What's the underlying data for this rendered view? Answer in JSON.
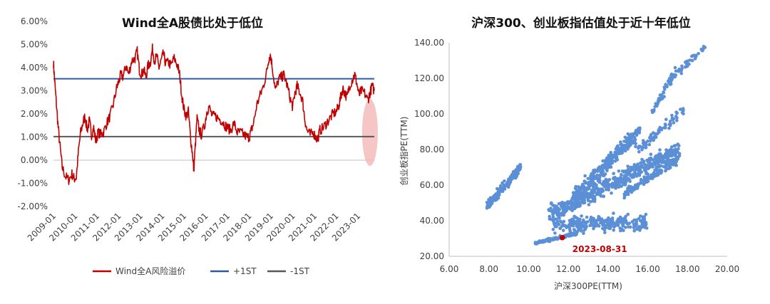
{
  "chart_data": [
    {
      "type": "line",
      "title": "Wind全A股债比处于低位",
      "xlabel": "",
      "ylabel": "",
      "ylim": [
        -0.02,
        0.06
      ],
      "yticks": [
        "-2.00%",
        "-1.00%",
        "0.00%",
        "1.00%",
        "2.00%",
        "3.00%",
        "4.00%",
        "5.00%",
        "6.00%"
      ],
      "categories": [
        "2009-01",
        "2010-01",
        "2011-01",
        "2012-01",
        "2013-01",
        "2014-01",
        "2015-01",
        "2016-01",
        "2017-01",
        "2018-01",
        "2019-01",
        "2020-01",
        "2021-01",
        "2022-01",
        "2023-01"
      ],
      "x_range": [
        2009.0,
        2023.75
      ],
      "series": [
        {
          "name": "Wind全A风险溢价",
          "color": "#C00000",
          "points": [
            [
              2009.0,
              4.2
            ],
            [
              2009.05,
              3.5
            ],
            [
              2009.12,
              2.6
            ],
            [
              2009.2,
              1.6
            ],
            [
              2009.3,
              0.6
            ],
            [
              2009.4,
              -0.3
            ],
            [
              2009.55,
              -0.7
            ],
            [
              2009.7,
              -0.85
            ],
            [
              2009.85,
              -0.6
            ],
            [
              2009.95,
              -0.8
            ],
            [
              2010.05,
              -0.75
            ],
            [
              2010.15,
              0.4
            ],
            [
              2010.25,
              1.2
            ],
            [
              2010.35,
              1.6
            ],
            [
              2010.45,
              1.9
            ],
            [
              2010.55,
              1.3
            ],
            [
              2010.65,
              1.7
            ],
            [
              2010.75,
              1.1
            ],
            [
              2010.85,
              1.4
            ],
            [
              2010.95,
              0.8
            ],
            [
              2011.05,
              1.2
            ],
            [
              2011.2,
              1.1
            ],
            [
              2011.3,
              1.2
            ],
            [
              2011.45,
              1.6
            ],
            [
              2011.6,
              1.9
            ],
            [
              2011.75,
              2.4
            ],
            [
              2011.9,
              3.1
            ],
            [
              2012.0,
              3.4
            ],
            [
              2012.1,
              3.7
            ],
            [
              2012.2,
              3.6
            ],
            [
              2012.35,
              4.1
            ],
            [
              2012.45,
              3.7
            ],
            [
              2012.6,
              4.3
            ],
            [
              2012.75,
              4.4
            ],
            [
              2012.85,
              4.7
            ],
            [
              2012.95,
              3.9
            ],
            [
              2013.05,
              3.7
            ],
            [
              2013.15,
              3.9
            ],
            [
              2013.25,
              3.6
            ],
            [
              2013.35,
              4.1
            ],
            [
              2013.45,
              4.2
            ],
            [
              2013.55,
              4.8
            ],
            [
              2013.65,
              4.3
            ],
            [
              2013.75,
              4.5
            ],
            [
              2013.85,
              4.0
            ],
            [
              2013.95,
              4.3
            ],
            [
              2014.05,
              4.6
            ],
            [
              2014.15,
              4.2
            ],
            [
              2014.3,
              4.2
            ],
            [
              2014.4,
              4.1
            ],
            [
              2014.55,
              4.4
            ],
            [
              2014.7,
              4.1
            ],
            [
              2014.8,
              3.7
            ],
            [
              2014.9,
              2.8
            ],
            [
              2015.0,
              2.2
            ],
            [
              2015.1,
              1.9
            ],
            [
              2015.2,
              2.1
            ],
            [
              2015.3,
              1.0
            ],
            [
              2015.4,
              0.2
            ],
            [
              2015.45,
              -0.45
            ],
            [
              2015.52,
              0.6
            ],
            [
              2015.6,
              1.8
            ],
            [
              2015.7,
              1.3
            ],
            [
              2015.8,
              1.1
            ],
            [
              2015.95,
              1.5
            ],
            [
              2016.05,
              2.1
            ],
            [
              2016.15,
              2.3
            ],
            [
              2016.3,
              1.9
            ],
            [
              2016.45,
              1.9
            ],
            [
              2016.6,
              1.8
            ],
            [
              2016.75,
              1.7
            ],
            [
              2016.9,
              1.5
            ],
            [
              2017.0,
              1.4
            ],
            [
              2017.15,
              1.3
            ],
            [
              2017.3,
              1.6
            ],
            [
              2017.45,
              1.2
            ],
            [
              2017.6,
              1.2
            ],
            [
              2017.75,
              1.1
            ],
            [
              2017.9,
              1.0
            ],
            [
              2018.0,
              1.0
            ],
            [
              2018.1,
              1.3
            ],
            [
              2018.2,
              1.6
            ],
            [
              2018.35,
              2.4
            ],
            [
              2018.5,
              2.8
            ],
            [
              2018.65,
              3.2
            ],
            [
              2018.8,
              3.8
            ],
            [
              2018.9,
              4.4
            ],
            [
              2018.98,
              4.55
            ],
            [
              2019.08,
              3.9
            ],
            [
              2019.2,
              3.0
            ],
            [
              2019.35,
              3.5
            ],
            [
              2019.5,
              3.6
            ],
            [
              2019.6,
              3.7
            ],
            [
              2019.75,
              3.2
            ],
            [
              2019.9,
              2.6
            ],
            [
              2020.0,
              2.3
            ],
            [
              2020.1,
              2.9
            ],
            [
              2020.2,
              3.2
            ],
            [
              2020.3,
              3.0
            ],
            [
              2020.45,
              2.6
            ],
            [
              2020.55,
              1.8
            ],
            [
              2020.65,
              1.3
            ],
            [
              2020.8,
              1.1
            ],
            [
              2020.95,
              1.2
            ],
            [
              2021.05,
              1.0
            ],
            [
              2021.15,
              0.9
            ],
            [
              2021.25,
              1.3
            ],
            [
              2021.4,
              1.4
            ],
            [
              2021.55,
              1.6
            ],
            [
              2021.7,
              1.8
            ],
            [
              2021.85,
              2.0
            ],
            [
              2022.0,
              2.1
            ],
            [
              2022.1,
              2.3
            ],
            [
              2022.2,
              2.7
            ],
            [
              2022.3,
              3.1
            ],
            [
              2022.4,
              2.9
            ],
            [
              2022.5,
              2.7
            ],
            [
              2022.6,
              3.2
            ],
            [
              2022.75,
              3.5
            ],
            [
              2022.85,
              3.7
            ],
            [
              2022.95,
              3.3
            ],
            [
              2023.05,
              2.8
            ],
            [
              2023.15,
              3.0
            ],
            [
              2023.3,
              2.9
            ],
            [
              2023.45,
              2.6
            ],
            [
              2023.55,
              2.9
            ],
            [
              2023.65,
              3.2
            ],
            [
              2023.75,
              3.0
            ]
          ]
        },
        {
          "name": "+1ST",
          "color": "#2E5C9A",
          "constant": 3.52
        },
        {
          "name": "-1ST",
          "color": "#595959",
          "constant": 1.02
        }
      ],
      "legend_position": "bottom",
      "highlight_color": "#F4B6B6"
    },
    {
      "type": "scatter",
      "title": "沪深300、创业板指估值处于近十年低位",
      "xlabel": "沪深300PE(TTM)",
      "ylabel": "创业板指PE(TTM)",
      "xlim": [
        6,
        20
      ],
      "ylim": [
        20,
        140
      ],
      "xticks": [
        "6.00",
        "8.00",
        "10.00",
        "12.00",
        "14.00",
        "16.00",
        "18.00",
        "20.00"
      ],
      "yticks": [
        "20.00",
        "40.00",
        "60.00",
        "80.00",
        "100.00",
        "120.00",
        "140.00"
      ],
      "point_color": "#5B8FD6",
      "highlight_color": "#C00000",
      "clusters": [
        {
          "x": [
            7.9,
            9.6
          ],
          "y": [
            48,
            70
          ],
          "trend": "up",
          "n": 160
        },
        {
          "x": [
            11.0,
            17.6
          ],
          "y": [
            43,
            80
          ],
          "trend": "up",
          "n": 500
        },
        {
          "x": [
            12.2,
            15.6
          ],
          "y": [
            52,
            90
          ],
          "trend": "up",
          "n": 300
        },
        {
          "x": [
            14.8,
            17.6
          ],
          "y": [
            55,
            75
          ],
          "trend": "up",
          "n": 140
        },
        {
          "x": [
            10.2,
            12.5
          ],
          "y": [
            27,
            33
          ],
          "trend": "up",
          "n": 110
        },
        {
          "x": [
            11.2,
            16.0
          ],
          "y": [
            32,
            45
          ],
          "trend": "flat",
          "n": 260
        },
        {
          "x": [
            15.5,
            17.8
          ],
          "y": [
            80,
            102
          ],
          "trend": "up",
          "n": 70
        },
        {
          "x": [
            16.2,
            17.4
          ],
          "y": [
            100,
            124
          ],
          "trend": "up",
          "n": 40
        },
        {
          "x": [
            17.0,
            18.9
          ],
          "y": [
            118,
            138
          ],
          "trend": "up",
          "n": 50
        }
      ],
      "highlight_point": {
        "label": "2023-08-31",
        "x": 11.7,
        "y": 30.5
      }
    }
  ]
}
